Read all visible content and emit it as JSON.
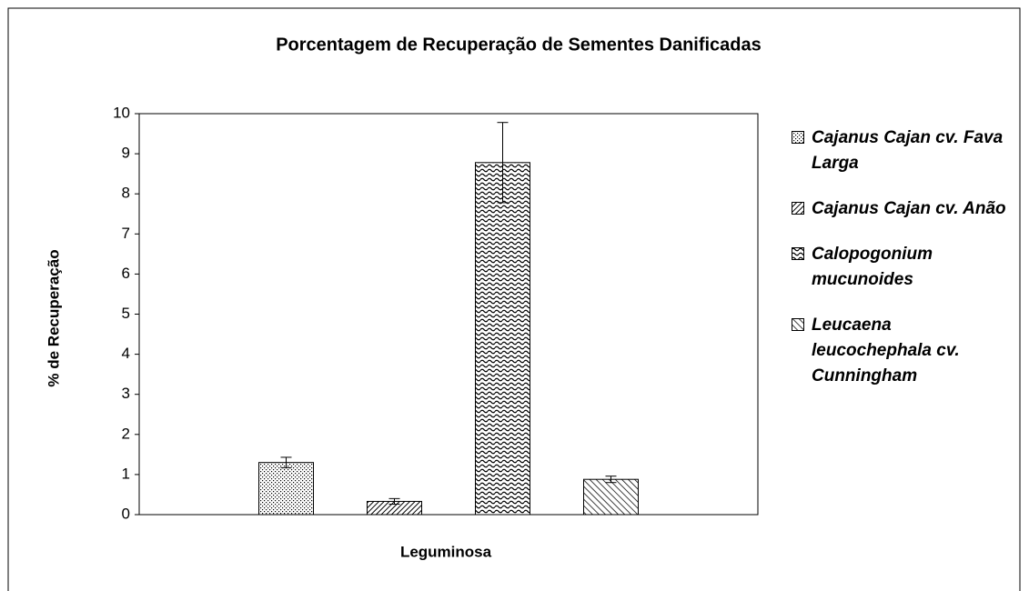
{
  "chart_data": {
    "type": "bar",
    "title": "Porcentagem de Recuperação de Sementes Danificadas",
    "x_label": "Leguminosa",
    "y_label": "% de Recuperação",
    "ylim": [
      0,
      10
    ],
    "yticks": [
      0,
      1,
      2,
      3,
      4,
      5,
      6,
      7,
      8,
      9,
      10
    ],
    "series": [
      {
        "name": "Cajanus Cajan cv. Fava Larga",
        "color": "#000000",
        "pattern": "dots",
        "values": [
          1.3
        ],
        "errors": [
          0.13
        ]
      },
      {
        "name": "Cajanus Cajan cv. Anão",
        "color": "#000000",
        "pattern": "diagonal-dense",
        "values": [
          0.33
        ],
        "errors": [
          0.07
        ]
      },
      {
        "name": "Calopogonium mucunoides",
        "color": "#000000",
        "pattern": "waves",
        "values": [
          8.78
        ],
        "errors": [
          1.0
        ]
      },
      {
        "name": "Leucaena leucochephala cv. Cunningham",
        "color": "#000000",
        "pattern": "diagonal",
        "values": [
          0.88
        ],
        "errors": [
          0.08
        ]
      }
    ],
    "legend": "right"
  }
}
